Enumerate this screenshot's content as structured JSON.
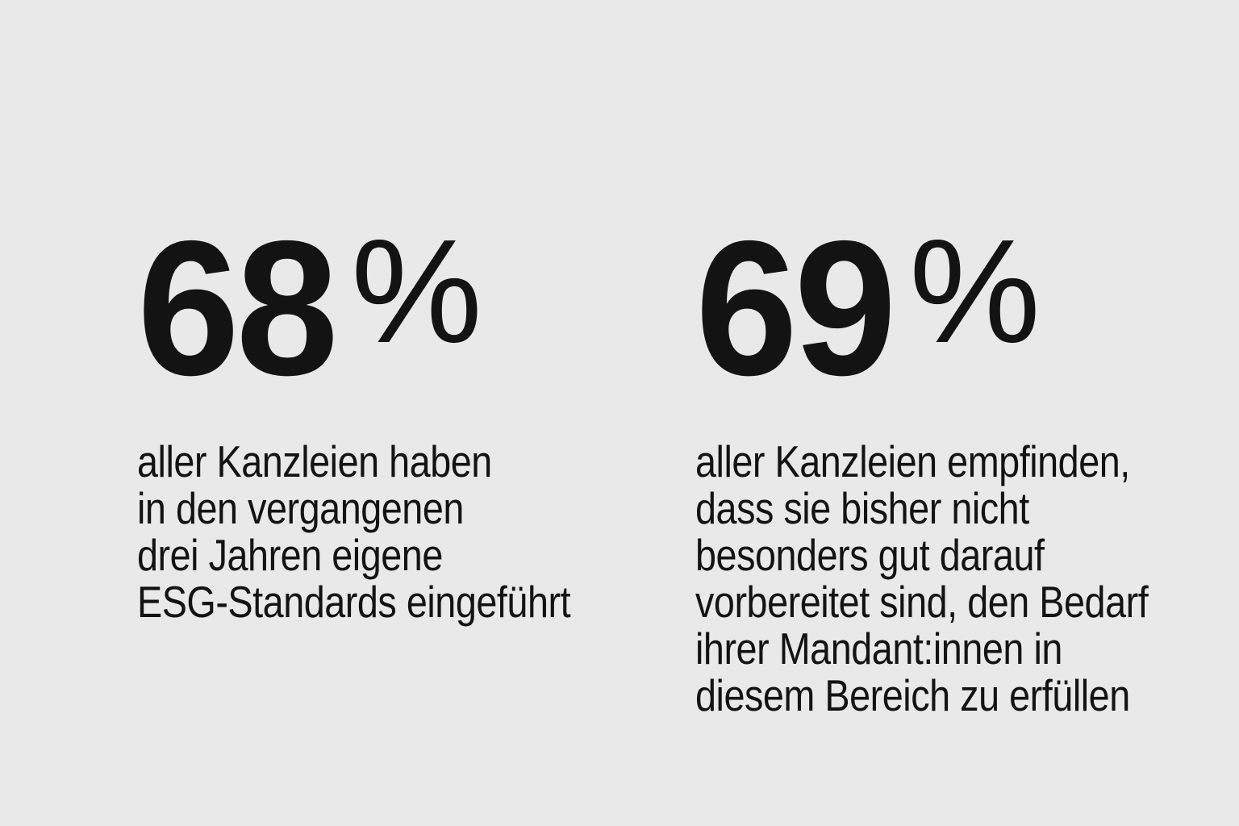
{
  "page": {
    "background_color": "#e9e9e9",
    "text_color": "#131313"
  },
  "stats": [
    {
      "value": "68",
      "unit": "%",
      "description": "aller Kanzleien haben\nin den vergangenen\ndrei Jahren eigene\nESG-Standards eingeführt"
    },
    {
      "value": "69",
      "unit": "%",
      "description": "aller Kanzleien empfinden,\ndass sie bisher nicht\nbesonders gut darauf\nvorbereitet sind, den Bedarf\nihrer Mandant:innen in\ndiesem Bereich zu erfüllen"
    }
  ],
  "chart_data": {
    "type": "table",
    "title": "",
    "categories": [
      "aller Kanzleien haben in den vergangenen drei Jahren eigene ESG-Standards eingeführt",
      "aller Kanzleien empfinden, dass sie bisher nicht besonders gut darauf vorbereitet sind, den Bedarf ihrer Mandant:innen in diesem Bereich zu erfüllen"
    ],
    "values": [
      68,
      69
    ],
    "unit": "%",
    "legend": "none",
    "grid": "off"
  }
}
